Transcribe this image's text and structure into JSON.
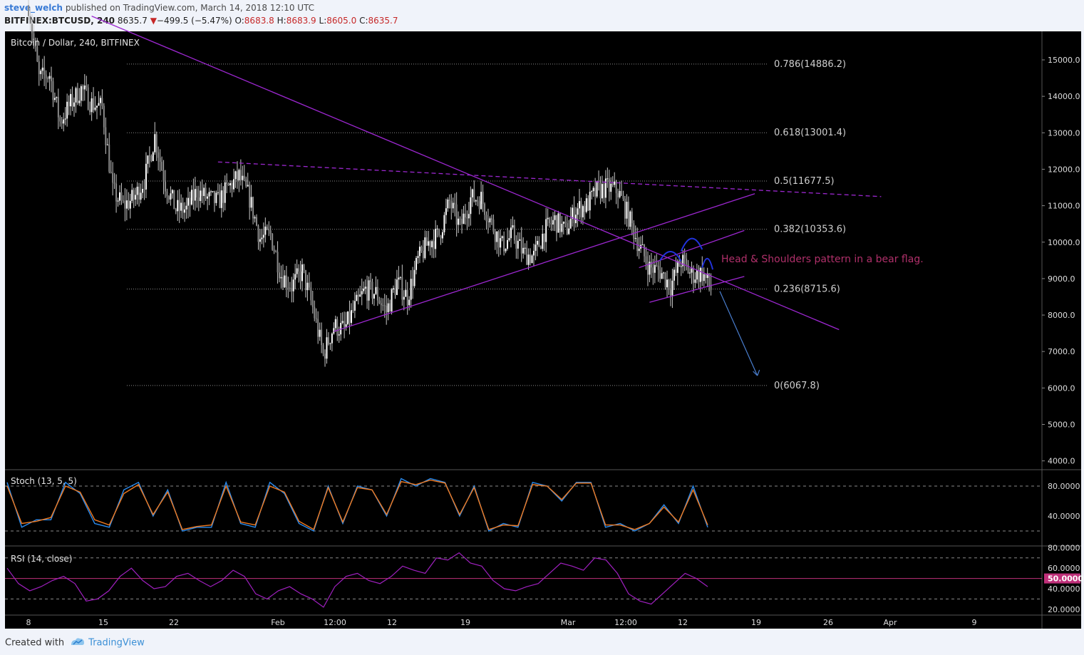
{
  "header": {
    "user": "steve_welch",
    "published": "published on TradingView.com, March 14, 2018 12:10 UTC",
    "symbol": "BITFINEX:BTCUSD, 240",
    "last": "8635.7",
    "change_arrow": "▼",
    "change": "−499.5 (−5.47%)",
    "o_label": "O:",
    "o_value": "8683.8",
    "h_label": "H:",
    "h_value": "8683.9",
    "l_label": "L:",
    "l_value": "8605.0",
    "c_label": "C:",
    "c_value": "8635.7"
  },
  "footer": {
    "created": "Created with",
    "brand": "TradingView"
  },
  "colors": {
    "background": "#000000",
    "candle": "#c9c9c9",
    "trendline": "#9c27d0",
    "stoch_k": "#2a8cf0",
    "stoch_d": "#f07a20",
    "rsi": "#a020c0",
    "annotation": "#b0306a",
    "arrow": "#4a7fd0",
    "hs_curve": "#2233dd"
  },
  "chart_data": [
    {
      "type": "candlestick",
      "title": "Bitcoin / Dollar, 240, BITFINEX",
      "yticks": [
        15000,
        14000,
        13000,
        12000,
        11000,
        10000,
        9000,
        8000,
        7000,
        6000,
        5000,
        4000
      ],
      "ytick_labels": [
        "15000.0",
        "14000.0",
        "13000.0",
        "12000.0",
        "11000.0",
        "10000.0",
        "9000.0",
        "8000.0",
        "7000.0",
        "6000.0",
        "5000.0",
        "4000.0"
      ],
      "xtick_labels": [
        "8",
        "15",
        "22",
        "Feb",
        "12:00",
        "12",
        "19",
        "Mar",
        "12:00",
        "12",
        "19",
        "26",
        "Apr",
        "9"
      ],
      "x_range": [
        "2018-01-08",
        "2018-04-09"
      ],
      "close": [
        {
          "d": "2018-01-08",
          "v": 16500
        },
        {
          "d": "2018-01-09",
          "v": 14500
        },
        {
          "d": "2018-01-10",
          "v": 14600
        },
        {
          "d": "2018-01-11",
          "v": 13300
        },
        {
          "d": "2018-01-12",
          "v": 13800
        },
        {
          "d": "2018-01-13",
          "v": 14200
        },
        {
          "d": "2018-01-14",
          "v": 13800
        },
        {
          "d": "2018-01-15",
          "v": 13700
        },
        {
          "d": "2018-01-16",
          "v": 11400
        },
        {
          "d": "2018-01-17",
          "v": 11000
        },
        {
          "d": "2018-01-18",
          "v": 11200
        },
        {
          "d": "2018-01-19",
          "v": 11700
        },
        {
          "d": "2018-01-20",
          "v": 12900
        },
        {
          "d": "2018-01-21",
          "v": 11600
        },
        {
          "d": "2018-01-22",
          "v": 10900
        },
        {
          "d": "2018-01-23",
          "v": 10900
        },
        {
          "d": "2018-01-24",
          "v": 11400
        },
        {
          "d": "2018-01-25",
          "v": 11200
        },
        {
          "d": "2018-01-26",
          "v": 11100
        },
        {
          "d": "2018-01-27",
          "v": 11500
        },
        {
          "d": "2018-01-28",
          "v": 11800
        },
        {
          "d": "2018-01-29",
          "v": 11200
        },
        {
          "d": "2018-01-30",
          "v": 10100
        },
        {
          "d": "2018-01-31",
          "v": 10200
        },
        {
          "d": "2018-02-01",
          "v": 9100
        },
        {
          "d": "2018-02-02",
          "v": 8800
        },
        {
          "d": "2018-02-03",
          "v": 9200
        },
        {
          "d": "2018-02-04",
          "v": 8200
        },
        {
          "d": "2018-02-05",
          "v": 6900
        },
        {
          "d": "2018-02-06",
          "v": 7700
        },
        {
          "d": "2018-02-07",
          "v": 7600
        },
        {
          "d": "2018-02-08",
          "v": 8200
        },
        {
          "d": "2018-02-09",
          "v": 8700
        },
        {
          "d": "2018-02-10",
          "v": 8600
        },
        {
          "d": "2018-02-11",
          "v": 8100
        },
        {
          "d": "2018-02-12",
          "v": 8900
        },
        {
          "d": "2018-02-13",
          "v": 8500
        },
        {
          "d": "2018-02-14",
          "v": 9500
        },
        {
          "d": "2018-02-15",
          "v": 10000
        },
        {
          "d": "2018-02-16",
          "v": 10200
        },
        {
          "d": "2018-02-17",
          "v": 11100
        },
        {
          "d": "2018-02-18",
          "v": 10400
        },
        {
          "d": "2018-02-19",
          "v": 11200
        },
        {
          "d": "2018-02-20",
          "v": 11200
        },
        {
          "d": "2018-02-21",
          "v": 10500
        },
        {
          "d": "2018-02-22",
          "v": 9900
        },
        {
          "d": "2018-02-23",
          "v": 10200
        },
        {
          "d": "2018-02-24",
          "v": 9700
        },
        {
          "d": "2018-02-25",
          "v": 9600
        },
        {
          "d": "2018-02-26",
          "v": 10300
        },
        {
          "d": "2018-02-27",
          "v": 10600
        },
        {
          "d": "2018-02-28",
          "v": 10300
        },
        {
          "d": "2018-03-01",
          "v": 10900
        },
        {
          "d": "2018-03-02",
          "v": 11000
        },
        {
          "d": "2018-03-03",
          "v": 11400
        },
        {
          "d": "2018-03-04",
          "v": 11500
        },
        {
          "d": "2018-03-05",
          "v": 11400
        },
        {
          "d": "2018-03-06",
          "v": 10700
        },
        {
          "d": "2018-03-07",
          "v": 9900
        },
        {
          "d": "2018-03-08",
          "v": 9300
        },
        {
          "d": "2018-03-09",
          "v": 9200
        },
        {
          "d": "2018-03-10",
          "v": 8800
        },
        {
          "d": "2018-03-11",
          "v": 9500
        },
        {
          "d": "2018-03-12",
          "v": 9100
        },
        {
          "d": "2018-03-13",
          "v": 9150
        },
        {
          "d": "2018-03-14",
          "v": 8635.7
        }
      ],
      "fibonacci": [
        {
          "label": "0.786(14886.2)",
          "value": 14886.2
        },
        {
          "label": "0.618(13001.4)",
          "value": 13001.4
        },
        {
          "label": "0.5(11677.5)",
          "value": 11677.5
        },
        {
          "label": "0.382(10353.6)",
          "value": 10353.6
        },
        {
          "label": "0.236(8715.6)",
          "value": 8715.6
        },
        {
          "label": "0(6067.8)",
          "value": 6067.8
        }
      ],
      "trendlines": [
        {
          "style": "solid",
          "from": {
            "d": "2018-01-14",
            "v": 16200
          },
          "to": {
            "d": "2018-03-26",
            "v": 7600
          }
        },
        {
          "style": "dashed",
          "from": {
            "d": "2018-01-26",
            "v": 12200
          },
          "to": {
            "d": "2018-03-30",
            "v": 11250
          }
        },
        {
          "style": "solid",
          "from": {
            "d": "2018-02-06",
            "v": 7550
          },
          "to": {
            "d": "2018-03-18",
            "v": 11330
          }
        },
        {
          "style": "solid",
          "from": {
            "d": "2018-03-07",
            "v": 9300
          },
          "to": {
            "d": "2018-03-17",
            "v": 10320
          }
        },
        {
          "style": "solid",
          "from": {
            "d": "2018-03-08",
            "v": 8350
          },
          "to": {
            "d": "2018-03-17",
            "v": 9060
          }
        }
      ],
      "projection_arrow": {
        "from": {
          "d": "2018-03-14",
          "v": 8650
        },
        "to": {
          "d": "2018-03-20",
          "v": 6300
        }
      },
      "annotation": "Head & Shoulders pattern in a bear flag."
    },
    {
      "type": "line",
      "title": "Stoch (13, 5, 5)",
      "yticks": [
        80,
        40
      ],
      "ytick_labels": [
        "80.0000",
        "40.0000"
      ],
      "levels": [
        80,
        20
      ],
      "series": [
        {
          "name": "%K",
          "values": [
            85,
            25,
            35,
            35,
            85,
            70,
            30,
            25,
            75,
            85,
            40,
            75,
            20,
            25,
            25,
            85,
            30,
            25,
            85,
            70,
            30,
            20,
            80,
            30,
            80,
            75,
            40,
            90,
            80,
            90,
            85,
            40,
            80,
            20,
            30,
            25,
            85,
            80,
            60,
            85,
            85,
            25,
            30,
            20,
            30,
            55,
            30,
            80,
            25
          ]
        },
        {
          "name": "%D",
          "values": [
            80,
            30,
            33,
            38,
            80,
            72,
            35,
            28,
            70,
            82,
            42,
            72,
            22,
            26,
            28,
            80,
            32,
            28,
            80,
            72,
            33,
            22,
            78,
            32,
            78,
            75,
            42,
            86,
            82,
            88,
            84,
            42,
            78,
            22,
            28,
            27,
            82,
            80,
            62,
            84,
            84,
            28,
            28,
            22,
            30,
            52,
            32,
            75,
            28
          ]
        }
      ]
    },
    {
      "type": "line",
      "title": "RSI (14, close)",
      "yticks": [
        80,
        60,
        50,
        40,
        20
      ],
      "ytick_labels": [
        "80.0000",
        "60.0000",
        "50.0000",
        "40.0000",
        "20.0000"
      ],
      "current_label": "50.0000",
      "levels": [
        70,
        50,
        30
      ],
      "series": [
        {
          "name": "RSI",
          "values": [
            60,
            45,
            38,
            42,
            48,
            52,
            45,
            28,
            30,
            38,
            52,
            60,
            48,
            40,
            42,
            52,
            55,
            48,
            42,
            48,
            58,
            52,
            35,
            30,
            38,
            42,
            35,
            30,
            22,
            42,
            52,
            55,
            48,
            45,
            52,
            62,
            58,
            55,
            70,
            68,
            75,
            65,
            62,
            48,
            40,
            38,
            42,
            45,
            55,
            65,
            62,
            58,
            70,
            68,
            55,
            35,
            28,
            25,
            35,
            45,
            55,
            50,
            42
          ]
        }
      ]
    }
  ]
}
